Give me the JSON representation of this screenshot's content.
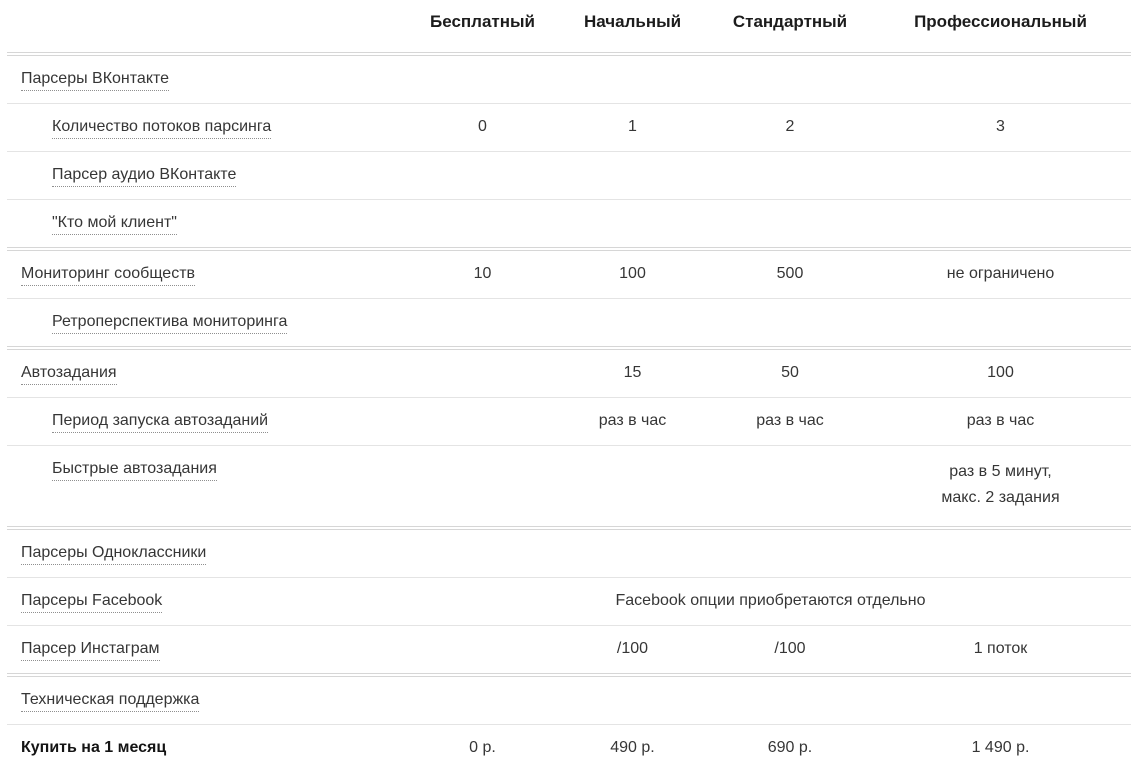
{
  "colors": {
    "header_text": "#1c1c1c",
    "body_text": "#363636",
    "row_border": "#e4e4e4",
    "section_border": "#d6d6d6"
  },
  "plans": {
    "header": [
      "Бесплатный",
      "Начальный",
      "Стандартный",
      "Профессиональный"
    ]
  },
  "rows": [
    {
      "label": "Парсеры ВКонтакте",
      "values": [
        "",
        "",
        "",
        ""
      ]
    },
    {
      "label": "Количество потоков парсинга",
      "values": [
        "0",
        "1",
        "2",
        "3"
      ]
    },
    {
      "label": "Парсер аудио ВКонтакте",
      "values": [
        "",
        "",
        "",
        ""
      ]
    },
    {
      "label": "\"Кто мой клиент\"",
      "values": [
        "",
        "",
        "",
        ""
      ]
    },
    {
      "label": "Мониторинг сообществ",
      "values": [
        "10",
        "100",
        "500",
        "не ограничено"
      ]
    },
    {
      "label": "Ретроперспектива мониторинга",
      "values": [
        "",
        "",
        "",
        ""
      ]
    },
    {
      "label": "Автозадания",
      "values": [
        "",
        "15",
        "50",
        "100"
      ]
    },
    {
      "label": "Период запуска автозаданий",
      "values": [
        "",
        "раз в час",
        "раз в час",
        "раз в час"
      ]
    },
    {
      "label": "Быстрые автозадания",
      "values": [
        "",
        "",
        "",
        "раз в 5 минут,\nмакс. 2 задания"
      ]
    },
    {
      "label": "Парсеры Одноклассники",
      "values": [
        "",
        "",
        "",
        ""
      ]
    },
    {
      "label": "Парсеры Facebook",
      "span_note": "Facebook опции приобретаются отдельно"
    },
    {
      "label": "Парсер Инстаграм",
      "values": [
        "",
        "/100",
        "/100",
        "1 поток"
      ]
    },
    {
      "label": "Техническая поддержка",
      "values": [
        "",
        "",
        "",
        ""
      ]
    },
    {
      "label": "Купить на 1 месяц",
      "values": [
        "0 р.",
        "490 р.",
        "690 р.",
        "1 490 р."
      ]
    }
  ]
}
